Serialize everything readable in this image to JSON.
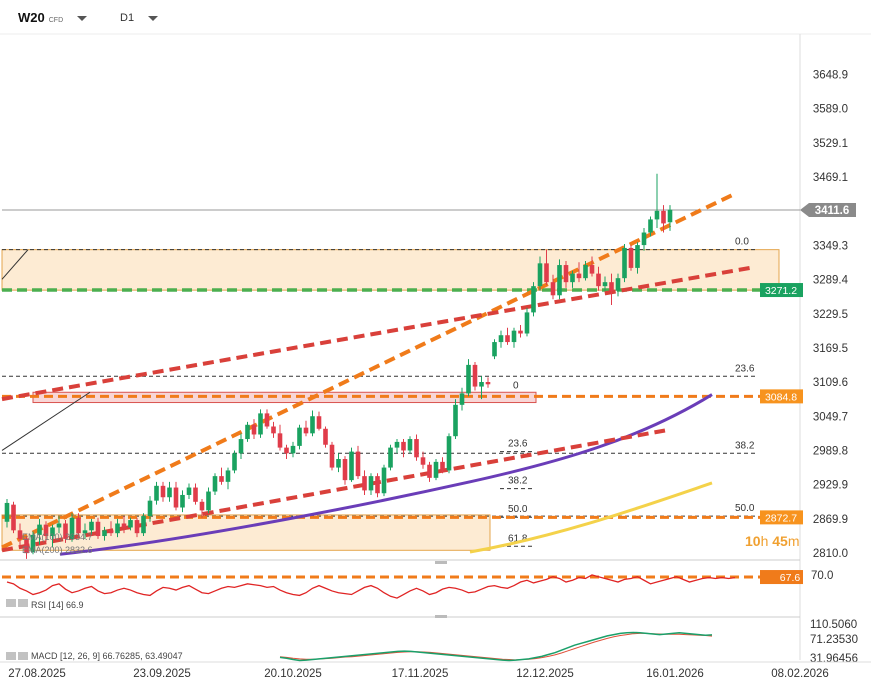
{
  "toolbar": {
    "symbol": "W20",
    "symbol_suffix": "CFD",
    "timeframe": "D1"
  },
  "chart_data": {
    "type": "candlestick",
    "symbol": "W20",
    "ylim": [
      2810.0,
      3720.0
    ],
    "y_ticks": [
      "3648.9",
      "3589.0",
      "3529.1",
      "3469.1",
      "3349.3",
      "3289.4",
      "3229.5",
      "3169.5",
      "3109.6",
      "3049.7",
      "2989.8",
      "2929.9",
      "2869.9",
      "2810.0"
    ],
    "x_ticks": [
      "27.08.2025",
      "23.09.2025",
      "20.10.2025",
      "17.11.2025",
      "12.12.2025",
      "16.01.2026",
      "08.02.2026"
    ],
    "last_price": "3411.6",
    "price_tags": [
      {
        "label": "3271.2",
        "value": 3271.2,
        "color": "#1aa260"
      },
      {
        "label": "3084.8",
        "value": 3084.8,
        "color": "#f7931e"
      },
      {
        "label": "2872.7",
        "value": 2872.7,
        "color": "#f7931e"
      }
    ],
    "countdown": {
      "hours": "10",
      "hours_unit": "h",
      "minutes": "45",
      "minutes_unit": "m"
    },
    "fib_sets": [
      {
        "levels": [
          {
            "label": "0.0",
            "value": 3342
          },
          {
            "label": "23.6",
            "value": 3120
          },
          {
            "label": "38.2",
            "value": 2985
          },
          {
            "label": "50.0",
            "value": 2875
          }
        ]
      },
      {
        "levels": [
          {
            "label": "0",
            "value": 3095
          },
          {
            "label": "23.6",
            "value": 2988
          },
          {
            "label": "38.2",
            "value": 2923
          },
          {
            "label": "50.0",
            "value": 2873
          },
          {
            "label": "61.8",
            "value": 2822
          }
        ]
      }
    ],
    "ema_labels": [
      "EMA(100) 2934.7",
      "EMA(200) 2832.6"
    ],
    "candles": [
      {
        "o": 2865,
        "h": 2905,
        "l": 2855,
        "c": 2898
      },
      {
        "o": 2895,
        "h": 2900,
        "l": 2845,
        "c": 2850
      },
      {
        "o": 2850,
        "h": 2862,
        "l": 2820,
        "c": 2835
      },
      {
        "o": 2836,
        "h": 2840,
        "l": 2800,
        "c": 2810
      },
      {
        "o": 2812,
        "h": 2848,
        "l": 2808,
        "c": 2842
      },
      {
        "o": 2842,
        "h": 2870,
        "l": 2825,
        "c": 2860
      },
      {
        "o": 2860,
        "h": 2866,
        "l": 2830,
        "c": 2840
      },
      {
        "o": 2840,
        "h": 2860,
        "l": 2820,
        "c": 2855
      },
      {
        "o": 2855,
        "h": 2875,
        "l": 2845,
        "c": 2862
      },
      {
        "o": 2862,
        "h": 2868,
        "l": 2828,
        "c": 2835
      },
      {
        "o": 2835,
        "h": 2880,
        "l": 2830,
        "c": 2872
      },
      {
        "o": 2872,
        "h": 2880,
        "l": 2838,
        "c": 2845
      },
      {
        "o": 2845,
        "h": 2862,
        "l": 2835,
        "c": 2850
      },
      {
        "o": 2850,
        "h": 2870,
        "l": 2842,
        "c": 2865
      },
      {
        "o": 2865,
        "h": 2872,
        "l": 2835,
        "c": 2840
      },
      {
        "o": 2840,
        "h": 2856,
        "l": 2832,
        "c": 2850
      },
      {
        "o": 2850,
        "h": 2866,
        "l": 2840,
        "c": 2845
      },
      {
        "o": 2845,
        "h": 2870,
        "l": 2838,
        "c": 2862
      },
      {
        "o": 2862,
        "h": 2875,
        "l": 2845,
        "c": 2855
      },
      {
        "o": 2855,
        "h": 2872,
        "l": 2850,
        "c": 2868
      },
      {
        "o": 2868,
        "h": 2872,
        "l": 2838,
        "c": 2845
      },
      {
        "o": 2845,
        "h": 2880,
        "l": 2840,
        "c": 2875
      },
      {
        "o": 2875,
        "h": 2910,
        "l": 2865,
        "c": 2902
      },
      {
        "o": 2902,
        "h": 2935,
        "l": 2895,
        "c": 2928
      },
      {
        "o": 2928,
        "h": 2935,
        "l": 2900,
        "c": 2908
      },
      {
        "o": 2908,
        "h": 2935,
        "l": 2900,
        "c": 2925
      },
      {
        "o": 2925,
        "h": 2935,
        "l": 2885,
        "c": 2890
      },
      {
        "o": 2890,
        "h": 2920,
        "l": 2882,
        "c": 2912
      },
      {
        "o": 2912,
        "h": 2932,
        "l": 2905,
        "c": 2925
      },
      {
        "o": 2925,
        "h": 2932,
        "l": 2895,
        "c": 2900
      },
      {
        "o": 2900,
        "h": 2905,
        "l": 2872,
        "c": 2885
      },
      {
        "o": 2885,
        "h": 2925,
        "l": 2880,
        "c": 2918
      },
      {
        "o": 2918,
        "h": 2950,
        "l": 2912,
        "c": 2945
      },
      {
        "o": 2945,
        "h": 2960,
        "l": 2930,
        "c": 2935
      },
      {
        "o": 2935,
        "h": 2960,
        "l": 2922,
        "c": 2955
      },
      {
        "o": 2955,
        "h": 2990,
        "l": 2950,
        "c": 2985
      },
      {
        "o": 2985,
        "h": 3020,
        "l": 2975,
        "c": 3010
      },
      {
        "o": 3010,
        "h": 3040,
        "l": 3005,
        "c": 3035
      },
      {
        "o": 3035,
        "h": 3045,
        "l": 3010,
        "c": 3018
      },
      {
        "o": 3018,
        "h": 3062,
        "l": 3012,
        "c": 3055
      },
      {
        "o": 3055,
        "h": 3062,
        "l": 3028,
        "c": 3032
      },
      {
        "o": 3032,
        "h": 3040,
        "l": 3012,
        "c": 3020
      },
      {
        "o": 3020,
        "h": 3035,
        "l": 2990,
        "c": 2995
      },
      {
        "o": 2995,
        "h": 3000,
        "l": 2975,
        "c": 2985
      },
      {
        "o": 2985,
        "h": 3005,
        "l": 2978,
        "c": 2998
      },
      {
        "o": 2998,
        "h": 3035,
        "l": 2992,
        "c": 3030
      },
      {
        "o": 3030,
        "h": 3042,
        "l": 3015,
        "c": 3020
      },
      {
        "o": 3020,
        "h": 3060,
        "l": 3015,
        "c": 3050
      },
      {
        "o": 3050,
        "h": 3058,
        "l": 3025,
        "c": 3028
      },
      {
        "o": 3028,
        "h": 3032,
        "l": 2995,
        "c": 3000
      },
      {
        "o": 3000,
        "h": 3005,
        "l": 2955,
        "c": 2960
      },
      {
        "o": 2960,
        "h": 2985,
        "l": 2952,
        "c": 2975
      },
      {
        "o": 2975,
        "h": 2980,
        "l": 2930,
        "c": 2938
      },
      {
        "o": 2938,
        "h": 2995,
        "l": 2935,
        "c": 2988
      },
      {
        "o": 2988,
        "h": 2998,
        "l": 2940,
        "c": 2945
      },
      {
        "o": 2945,
        "h": 2955,
        "l": 2912,
        "c": 2920
      },
      {
        "o": 2920,
        "h": 2950,
        "l": 2912,
        "c": 2945
      },
      {
        "o": 2945,
        "h": 2950,
        "l": 2908,
        "c": 2915
      },
      {
        "o": 2915,
        "h": 2965,
        "l": 2910,
        "c": 2960
      },
      {
        "o": 2960,
        "h": 3000,
        "l": 2955,
        "c": 2995
      },
      {
        "o": 2995,
        "h": 3010,
        "l": 2985,
        "c": 3005
      },
      {
        "o": 3005,
        "h": 3010,
        "l": 2978,
        "c": 2990
      },
      {
        "o": 2990,
        "h": 3015,
        "l": 2985,
        "c": 3010
      },
      {
        "o": 3010,
        "h": 3018,
        "l": 2972,
        "c": 2978
      },
      {
        "o": 2978,
        "h": 2988,
        "l": 2958,
        "c": 2965
      },
      {
        "o": 2965,
        "h": 2970,
        "l": 2935,
        "c": 2942
      },
      {
        "o": 2942,
        "h": 2975,
        "l": 2938,
        "c": 2970
      },
      {
        "o": 2970,
        "h": 2978,
        "l": 2950,
        "c": 2955
      },
      {
        "o": 2955,
        "h": 3020,
        "l": 2950,
        "c": 3015
      },
      {
        "o": 3015,
        "h": 3080,
        "l": 3010,
        "c": 3070
      },
      {
        "o": 3070,
        "h": 3100,
        "l": 3060,
        "c": 3090
      },
      {
        "o": 3090,
        "h": 3150,
        "l": 3085,
        "c": 3140
      },
      {
        "o": 3140,
        "h": 3145,
        "l": 3095,
        "c": 3102
      },
      {
        "o": 3102,
        "h": 3120,
        "l": 3080,
        "c": 3110
      },
      {
        "o": 3110,
        "h": 3118,
        "l": 3100,
        "c": 3106
      },
      {
        "o": 3155,
        "h": 3185,
        "l": 3150,
        "c": 3180
      },
      {
        "o": 3180,
        "h": 3200,
        "l": 3170,
        "c": 3192
      },
      {
        "o": 3192,
        "h": 3205,
        "l": 3175,
        "c": 3180
      },
      {
        "o": 3180,
        "h": 3205,
        "l": 3170,
        "c": 3200
      },
      {
        "o": 3200,
        "h": 3210,
        "l": 3188,
        "c": 3195
      },
      {
        "o": 3195,
        "h": 3240,
        "l": 3190,
        "c": 3232
      },
      {
        "o": 3232,
        "h": 3285,
        "l": 3225,
        "c": 3278
      },
      {
        "o": 3278,
        "h": 3330,
        "l": 3270,
        "c": 3318
      },
      {
        "o": 3318,
        "h": 3342,
        "l": 3280,
        "c": 3285
      },
      {
        "o": 3285,
        "h": 3298,
        "l": 3255,
        "c": 3262
      },
      {
        "o": 3262,
        "h": 3325,
        "l": 3255,
        "c": 3315
      },
      {
        "o": 3315,
        "h": 3322,
        "l": 3275,
        "c": 3285
      },
      {
        "o": 3285,
        "h": 3305,
        "l": 3275,
        "c": 3300
      },
      {
        "o": 3300,
        "h": 3320,
        "l": 3285,
        "c": 3292
      },
      {
        "o": 3292,
        "h": 3322,
        "l": 3288,
        "c": 3315
      },
      {
        "o": 3315,
        "h": 3330,
        "l": 3295,
        "c": 3300
      },
      {
        "o": 3300,
        "h": 3312,
        "l": 3270,
        "c": 3278
      },
      {
        "o": 3278,
        "h": 3295,
        "l": 3270,
        "c": 3285
      },
      {
        "o": 3285,
        "h": 3300,
        "l": 3245,
        "c": 3270
      },
      {
        "o": 3270,
        "h": 3300,
        "l": 3260,
        "c": 3292
      },
      {
        "o": 3292,
        "h": 3352,
        "l": 3285,
        "c": 3345
      },
      {
        "o": 3345,
        "h": 3350,
        "l": 3305,
        "c": 3310
      },
      {
        "o": 3310,
        "h": 3355,
        "l": 3300,
        "c": 3350
      },
      {
        "o": 3350,
        "h": 3380,
        "l": 3340,
        "c": 3372
      },
      {
        "o": 3372,
        "h": 3400,
        "l": 3365,
        "c": 3395
      },
      {
        "o": 3395,
        "h": 3475,
        "l": 3380,
        "c": 3410
      },
      {
        "o": 3410,
        "h": 3420,
        "l": 3372,
        "c": 3388
      },
      {
        "o": 3390,
        "h": 3420,
        "l": 3375,
        "c": 3412
      }
    ]
  },
  "rsi": {
    "label": "RSI [14] 66.9",
    "level_tag": "67.6",
    "top_tick": "70.0",
    "values": [
      62,
      60,
      55,
      52,
      48,
      50,
      53,
      58,
      60,
      54,
      50,
      52,
      55,
      57,
      52,
      49,
      50,
      53,
      55,
      53,
      50,
      48,
      47,
      52,
      56,
      55,
      53,
      56,
      58,
      54,
      50,
      49,
      52,
      55,
      57,
      56,
      58,
      60,
      59,
      58,
      56,
      57,
      53,
      50,
      48,
      47,
      50,
      55,
      58,
      55,
      52,
      50,
      49,
      48,
      52,
      56,
      58,
      55,
      50,
      46,
      44,
      48,
      52,
      55,
      52,
      48,
      50,
      54,
      56,
      55,
      53,
      50,
      51,
      54,
      57,
      58,
      56,
      55,
      58,
      62,
      64,
      61,
      63,
      65,
      68,
      66,
      62,
      64,
      67,
      66,
      70,
      68,
      66,
      64,
      62,
      65,
      66,
      68,
      64,
      60,
      62,
      64,
      66,
      68,
      65,
      62,
      64,
      66,
      67,
      66,
      67,
      66,
      67
    ]
  },
  "macd": {
    "label": "MACD [12, 26, 9] 66.76285, 63.49047",
    "ticks": [
      "110.5060",
      "71.23530",
      "31.96456"
    ],
    "macd_values": [
      -5,
      -8,
      -12,
      -15,
      -14,
      -12,
      -10,
      -8,
      -6,
      -4,
      -2,
      0,
      2,
      4,
      6,
      8,
      10,
      12,
      14,
      15,
      14,
      12,
      10,
      8,
      6,
      4,
      2,
      0,
      -2,
      -4,
      -6,
      -8,
      -10,
      -12,
      -14,
      -15,
      -14,
      -12,
      -10,
      -6,
      -2,
      4,
      10,
      18,
      26,
      34,
      40,
      46,
      52,
      58,
      64,
      68,
      72,
      74,
      75,
      74,
      72,
      70,
      68,
      70,
      72,
      74,
      72,
      70,
      68,
      66,
      67
    ],
    "signal_values": [
      -3,
      -5,
      -8,
      -10,
      -11,
      -11,
      -10,
      -9,
      -8,
      -6,
      -4,
      -3,
      -1,
      1,
      3,
      5,
      7,
      9,
      11,
      12,
      13,
      13,
      12,
      11,
      9,
      7,
      5,
      3,
      1,
      -1,
      -3,
      -5,
      -7,
      -9,
      -11,
      -12,
      -13,
      -12,
      -11,
      -9,
      -6,
      -2,
      3,
      9,
      16,
      23,
      30,
      37,
      44,
      50,
      56,
      61,
      65,
      68,
      71,
      72,
      72,
      71,
      70,
      69,
      69,
      69,
      68,
      67,
      66,
      65,
      63
    ]
  },
  "colors": {
    "bull": "#1aa260",
    "bear": "#e03c4a",
    "orange": "#f07b1a",
    "red_dash": "#d9403a",
    "purple": "#6a3db8",
    "yellow": "#f4d24a",
    "zone_fill": "#fde8cc",
    "zone_border": "#e0962d",
    "green_line": "#4caf50"
  }
}
